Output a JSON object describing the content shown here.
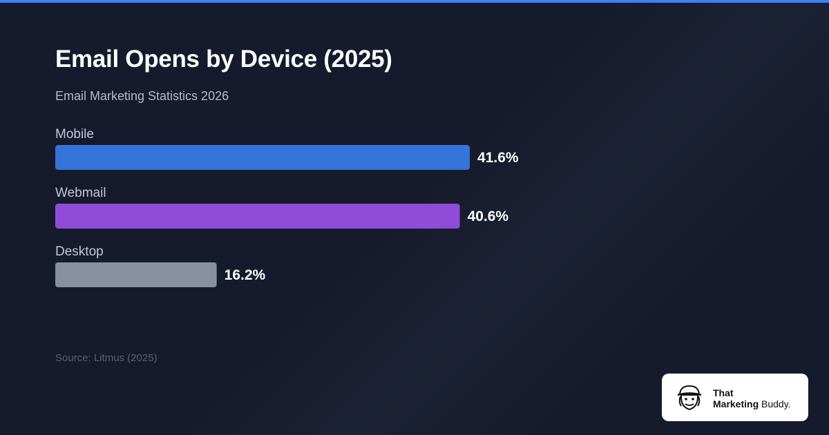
{
  "page": {
    "accent_color": "#3b82f6",
    "title": "Email Opens by Device (2025)",
    "subtitle": "Email Marketing Statistics 2026",
    "source": "Source: Litmus (2025)"
  },
  "brand": {
    "line1": "That",
    "line2_bold": "Marketing",
    "line2_rest": " Buddy.",
    "logo_icon": "cartoon-mascot-icon"
  },
  "chart_data": {
    "type": "bar",
    "orientation": "horizontal",
    "title": "Email Opens by Device (2025)",
    "subtitle": "Email Marketing Statistics 2026",
    "categories": [
      "Mobile",
      "Webmail",
      "Desktop"
    ],
    "values": [
      41.6,
      40.6,
      16.2
    ],
    "value_labels": [
      "41.6%",
      "40.6%",
      "16.2%"
    ],
    "colors": [
      "#3474d9",
      "#914bd9",
      "#8891a2"
    ],
    "unit": "%",
    "xlim": [
      0,
      41.6
    ],
    "grid": false,
    "legend": "none"
  }
}
